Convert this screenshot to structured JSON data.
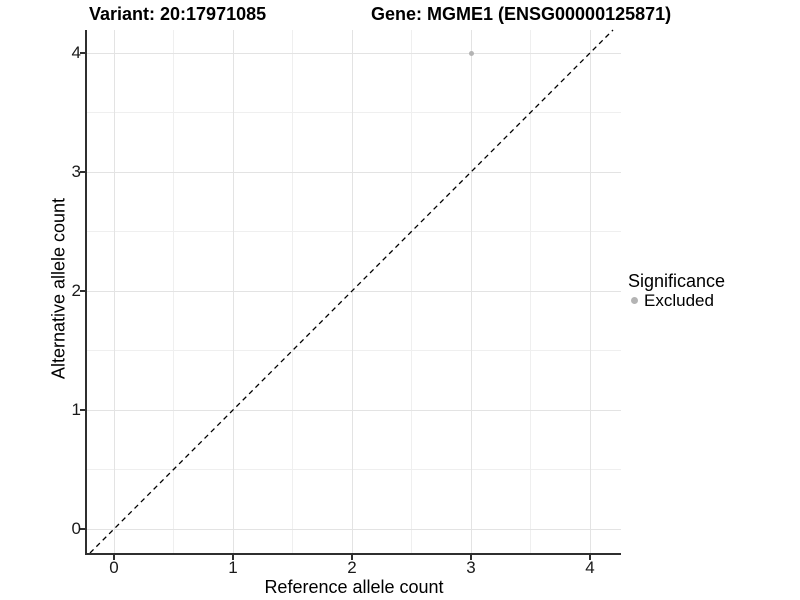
{
  "chart_data": {
    "type": "scatter",
    "title_left": "Variant: 20:17971085",
    "title_right": "Gene: MGME1 (ENSG00000125871)",
    "xlabel": "Reference allele count",
    "ylabel": "Alternative allele count",
    "xlim": [
      -0.2,
      4.25
    ],
    "ylim": [
      -0.2,
      4.2
    ],
    "x_ticks": [
      0,
      1,
      2,
      3,
      4
    ],
    "y_ticks": [
      0,
      1,
      2,
      3,
      4
    ],
    "x_minor_ticks": [
      0.5,
      1.5,
      2.5,
      3.5
    ],
    "y_minor_ticks": [
      0.5,
      1.5,
      2.5,
      3.5
    ],
    "grid": "major+minor",
    "reference_line": {
      "kind": "identity y=x",
      "linetype": "dashed",
      "color": "#000000"
    },
    "series": [
      {
        "name": "Excluded",
        "color": "#b4b4b4",
        "points": [
          {
            "x": 3,
            "y": 4
          }
        ]
      }
    ],
    "legend": {
      "title": "Significance",
      "position": "right",
      "entries": [
        {
          "label": "Excluded",
          "color": "#b4b4b4"
        }
      ]
    }
  },
  "colors": {
    "background": "#ffffff",
    "axis_line": "#2f2f2f",
    "major_grid": "#e3e3e3",
    "minor_grid": "#efefef",
    "tick_text": "#1a1a1a",
    "title_text": "#000000",
    "point": "#b4b4b4"
  }
}
